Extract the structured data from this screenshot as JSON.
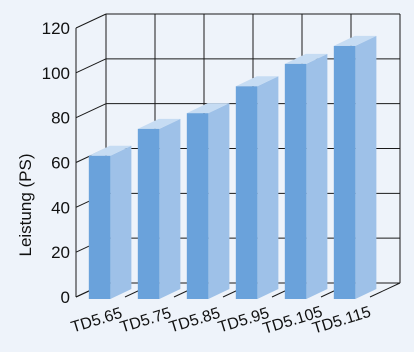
{
  "chart_data": {
    "type": "bar",
    "categories": [
      "TD5.65",
      "TD5.75",
      "TD5.85",
      "TD5.95",
      "TD5.105",
      "TD5.115"
    ],
    "values": [
      63,
      75,
      82,
      94,
      104,
      112
    ],
    "ylabel": "Leistung (PS)",
    "ylim": [
      0,
      120
    ],
    "yticks": [
      0,
      20,
      40,
      60,
      80,
      100,
      120
    ],
    "grid": true,
    "three_d": true,
    "colors": {
      "background": "#eef3fa",
      "bar_front": "#6aa2db",
      "bar_side": "#9ec1e8",
      "bar_top": "#c6dcf3",
      "grid": "#1a1a1a"
    }
  }
}
